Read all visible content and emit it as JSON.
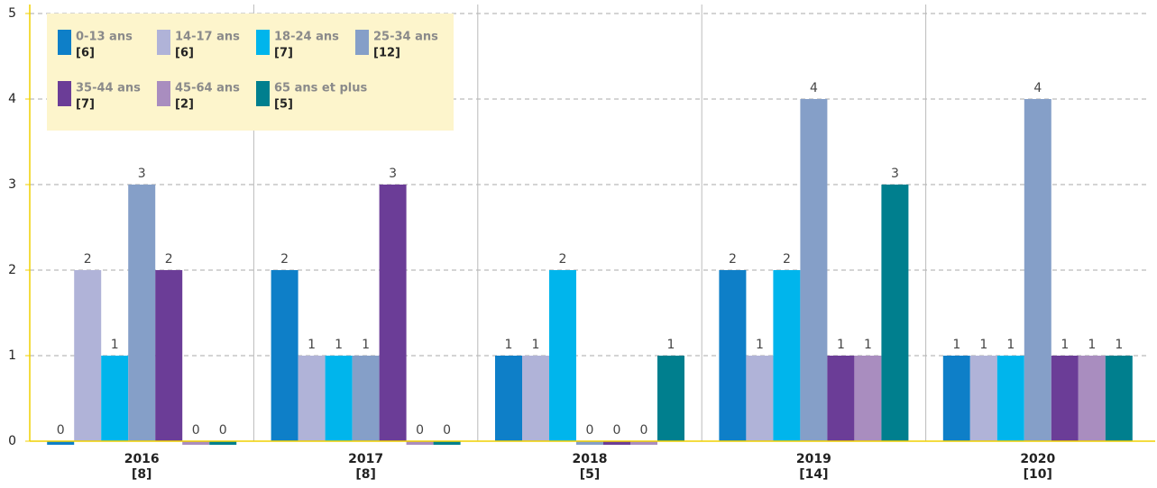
{
  "chart_data": {
    "type": "bar",
    "categories": [
      "2016",
      "2017",
      "2018",
      "2019",
      "2020"
    ],
    "category_labels": [
      "[8]",
      "[8]",
      "[5]",
      "[14]",
      "[10]"
    ],
    "series": [
      {
        "name": "0-13 ans",
        "count_label": "[6]",
        "color": "#0e7fc8",
        "values": [
          0,
          2,
          1,
          2,
          1
        ]
      },
      {
        "name": "14-17 ans",
        "count_label": "[6]",
        "color": "#b0b3d8",
        "values": [
          2,
          1,
          1,
          1,
          1
        ]
      },
      {
        "name": "18-24 ans",
        "count_label": "[7]",
        "color": "#00b5ec",
        "values": [
          1,
          1,
          2,
          2,
          1
        ]
      },
      {
        "name": "25-34 ans",
        "count_label": "[12]",
        "color": "#859fc8",
        "values": [
          3,
          1,
          0,
          4,
          4
        ]
      },
      {
        "name": "35-44 ans",
        "count_label": "[7]",
        "color": "#6b3d97",
        "values": [
          2,
          3,
          0,
          1,
          1
        ]
      },
      {
        "name": "45-64 ans",
        "count_label": "[2]",
        "color": "#a98dbf",
        "values": [
          0,
          0,
          0,
          1,
          1
        ]
      },
      {
        "name": "65 ans et plus",
        "count_label": "[5]",
        "color": "#007f8e",
        "values": [
          0,
          0,
          1,
          3,
          1
        ]
      }
    ],
    "ylim": [
      0,
      5
    ],
    "yticks": [
      0,
      1,
      2,
      3,
      4,
      5
    ],
    "grid": true
  }
}
